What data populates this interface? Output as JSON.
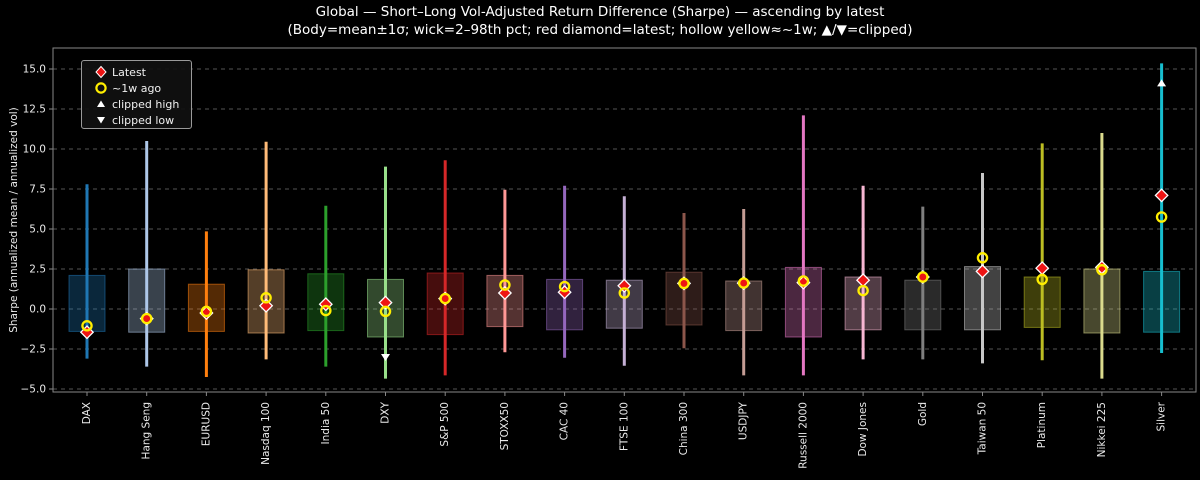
{
  "title": {
    "line1": "Global — Short–Long Vol-Adjusted Return Difference (Sharpe) — ascending by latest",
    "line2": "(Body=mean±1σ; wick=2–98th pct; red diamond=latest; hollow yellow≈~1w; ▲/▼=clipped)"
  },
  "legend": {
    "items": [
      {
        "label": "Latest",
        "marker": "red-diamond"
      },
      {
        "label": "~1w ago",
        "marker": "yellow-hollow-circle"
      },
      {
        "label": "clipped high",
        "marker": "white-triangle-up"
      },
      {
        "label": "clipped low",
        "marker": "white-triangle-down"
      }
    ]
  },
  "chart_data": {
    "type": "box",
    "title": "Global — Short–Long Vol-Adjusted Return Difference (Sharpe) — ascending by latest",
    "subtitle": "(Body=mean±1σ; wick=2–98th pct; red diamond=latest; hollow yellow≈~1w; ▲/▼=clipped)",
    "ylabel": "Sharpe (annualized mean / annualized vol)",
    "xlabel": "",
    "ylim": [
      -5.2,
      16.3
    ],
    "grid": true,
    "legend_position": "upper-left",
    "yticks": [
      {
        "v": -5.0,
        "label": "−5.0"
      },
      {
        "v": -2.5,
        "label": "−2.5"
      },
      {
        "v": 0.0,
        "label": "0.0"
      },
      {
        "v": 2.5,
        "label": "2.5"
      },
      {
        "v": 5.0,
        "label": "5.0"
      },
      {
        "v": 7.5,
        "label": "7.5"
      },
      {
        "v": 10.0,
        "label": "10.0"
      },
      {
        "v": 12.5,
        "label": "12.5"
      },
      {
        "v": 15.0,
        "label": "15.0"
      }
    ],
    "style": {
      "latest_color": "#ee1414",
      "latest_edge_color": "#ffffff",
      "week_color": "#ffee00",
      "clip_color": "#ffffff",
      "grid_color": "#555555",
      "frame_color": "#878787",
      "tick_text_color": "#eaeaea",
      "box_fill_opacity": 0.33,
      "box_edge_opacity": 0.55
    },
    "series": [
      {
        "name": "DAX",
        "color": "#1f77b4",
        "p2": -3.1,
        "p98": 7.8,
        "box_low": -1.4,
        "box_high": 2.1,
        "latest": -1.45,
        "week_ago": -1.05,
        "clip": null,
        "clip_value": null
      },
      {
        "name": "Hang Seng",
        "color": "#aec7e8",
        "p2": -3.6,
        "p98": 10.5,
        "box_low": -1.45,
        "box_high": 2.5,
        "latest": -0.6,
        "week_ago": -0.6,
        "clip": null,
        "clip_value": null
      },
      {
        "name": "EURUSD",
        "color": "#ff7f0e",
        "p2": -4.25,
        "p98": 4.85,
        "box_low": -1.4,
        "box_high": 1.55,
        "latest": -0.25,
        "week_ago": -0.15,
        "clip": null,
        "clip_value": null
      },
      {
        "name": "Nasdaq 100",
        "color": "#ffbb78",
        "p2": -3.15,
        "p98": 10.45,
        "box_low": -1.5,
        "box_high": 2.45,
        "latest": 0.2,
        "week_ago": 0.7,
        "clip": null,
        "clip_value": null
      },
      {
        "name": "India 50",
        "color": "#2ca02c",
        "p2": -3.6,
        "p98": 6.45,
        "box_low": -1.35,
        "box_high": 2.2,
        "latest": 0.3,
        "week_ago": -0.1,
        "clip": null,
        "clip_value": null
      },
      {
        "name": "DXY",
        "color": "#98df8a",
        "p2": -4.35,
        "p98": 8.9,
        "box_low": -1.75,
        "box_high": 1.85,
        "latest": 0.4,
        "week_ago": -0.15,
        "clip": "low",
        "clip_value": -3.0
      },
      {
        "name": "S&P 500",
        "color": "#d62728",
        "p2": -4.15,
        "p98": 9.3,
        "box_low": -1.6,
        "box_high": 2.25,
        "latest": 0.65,
        "week_ago": 0.65,
        "clip": null,
        "clip_value": null
      },
      {
        "name": "STOXX50",
        "color": "#ff9896",
        "p2": -2.7,
        "p98": 7.45,
        "box_low": -1.1,
        "box_high": 2.1,
        "latest": 1.0,
        "week_ago": 1.5,
        "clip": null,
        "clip_value": null
      },
      {
        "name": "CAC 40",
        "color": "#9467bd",
        "p2": -3.05,
        "p98": 7.7,
        "box_low": -1.3,
        "box_high": 1.85,
        "latest": 1.05,
        "week_ago": 1.4,
        "clip": null,
        "clip_value": null
      },
      {
        "name": "FTSE 100",
        "color": "#c5b0d5",
        "p2": -3.55,
        "p98": 7.05,
        "box_low": -1.2,
        "box_high": 1.8,
        "latest": 1.45,
        "week_ago": 1.0,
        "clip": null,
        "clip_value": null
      },
      {
        "name": "China 300",
        "color": "#8c564b",
        "p2": -2.45,
        "p98": 6.0,
        "box_low": -1.0,
        "box_high": 2.3,
        "latest": 1.6,
        "week_ago": 1.6,
        "clip": null,
        "clip_value": null
      },
      {
        "name": "USDJPY",
        "color": "#c49c94",
        "p2": -4.15,
        "p98": 6.25,
        "box_low": -1.35,
        "box_high": 1.75,
        "latest": 1.62,
        "week_ago": 1.62,
        "clip": null,
        "clip_value": null
      },
      {
        "name": "Russell 2000",
        "color": "#e377c2",
        "p2": -4.15,
        "p98": 12.1,
        "box_low": -1.75,
        "box_high": 2.6,
        "latest": 1.65,
        "week_ago": 1.75,
        "clip": null,
        "clip_value": null
      },
      {
        "name": "Dow Jones",
        "color": "#f7b6d2",
        "p2": -3.15,
        "p98": 7.7,
        "box_low": -1.3,
        "box_high": 2.0,
        "latest": 1.8,
        "week_ago": 1.15,
        "clip": null,
        "clip_value": null
      },
      {
        "name": "Gold",
        "color": "#7f7f7f",
        "p2": -3.15,
        "p98": 6.4,
        "box_low": -1.3,
        "box_high": 1.8,
        "latest": 2.0,
        "week_ago": 2.0,
        "clip": null,
        "clip_value": null
      },
      {
        "name": "Taiwan 50",
        "color": "#c7c7c7",
        "p2": -3.4,
        "p98": 8.5,
        "box_low": -1.3,
        "box_high": 2.65,
        "latest": 2.35,
        "week_ago": 3.2,
        "clip": null,
        "clip_value": null
      },
      {
        "name": "Platinum",
        "color": "#bcbd22",
        "p2": -3.2,
        "p98": 10.35,
        "box_low": -1.15,
        "box_high": 2.0,
        "latest": 2.55,
        "week_ago": 1.85,
        "clip": null,
        "clip_value": null
      },
      {
        "name": "Nikkei 225",
        "color": "#dbdb8d",
        "p2": -4.35,
        "p98": 11.0,
        "box_low": -1.5,
        "box_high": 2.5,
        "latest": 2.6,
        "week_ago": 2.45,
        "clip": null,
        "clip_value": null
      },
      {
        "name": "Silver",
        "color": "#17becf",
        "p2": -2.75,
        "p98": 15.35,
        "box_low": -1.45,
        "box_high": 2.35,
        "latest": 7.1,
        "week_ago": 5.75,
        "clip": "high",
        "clip_value": 14.1
      }
    ]
  }
}
